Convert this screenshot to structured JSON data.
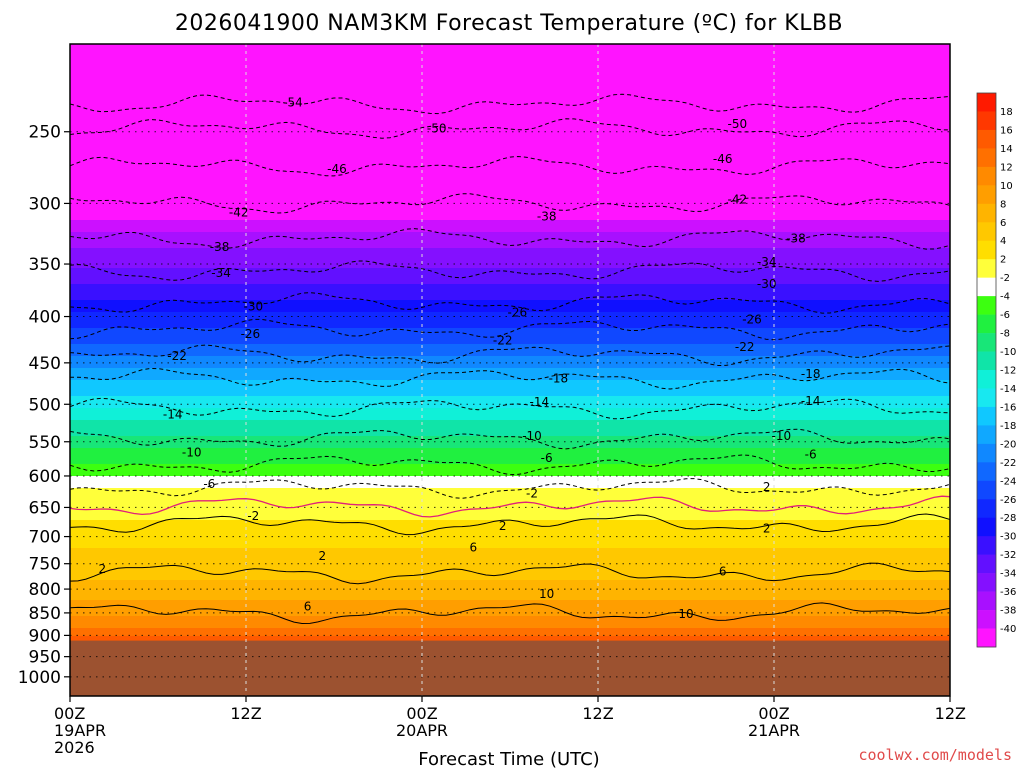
{
  "chart_data": {
    "type": "heatmap",
    "title": "2026041900 NAM3KM Forecast Temperature (ºC) for KLBB",
    "xlabel": "Forecast Time (UTC)",
    "ylabel": "",
    "y_scale": "log",
    "ylim": [
      1050,
      200
    ],
    "y_ticks": [
      250,
      300,
      350,
      400,
      450,
      500,
      550,
      600,
      650,
      700,
      750,
      800,
      850,
      900,
      950,
      1000
    ],
    "x_ticks": [
      {
        "hour": 0,
        "lines": [
          "00Z",
          "19APR",
          "2026"
        ]
      },
      {
        "hour": 12,
        "lines": [
          "12Z"
        ]
      },
      {
        "hour": 24,
        "lines": [
          "00Z",
          "20APR"
        ]
      },
      {
        "hour": 36,
        "lines": [
          "12Z"
        ]
      },
      {
        "hour": 48,
        "lines": [
          "00Z",
          "21APR"
        ]
      },
      {
        "hour": 60,
        "lines": [
          "12Z"
        ]
      }
    ],
    "xlim": [
      0,
      60
    ],
    "grid": true,
    "surface_pressure_hPa": 912,
    "temperature_profile": [
      {
        "p": 200,
        "t": -60
      },
      {
        "p": 230,
        "t": -54
      },
      {
        "p": 250,
        "t": -51
      },
      {
        "p": 270,
        "t": -47
      },
      {
        "p": 300,
        "t": -42
      },
      {
        "p": 330,
        "t": -37
      },
      {
        "p": 360,
        "t": -33
      },
      {
        "p": 390,
        "t": -29
      },
      {
        "p": 420,
        "t": -25
      },
      {
        "p": 450,
        "t": -21
      },
      {
        "p": 480,
        "t": -17
      },
      {
        "p": 510,
        "t": -13
      },
      {
        "p": 550,
        "t": -9
      },
      {
        "p": 590,
        "t": -5
      },
      {
        "p": 630,
        "t": -1
      },
      {
        "p": 670,
        "t": 2
      },
      {
        "p": 720,
        "t": 4
      },
      {
        "p": 780,
        "t": 6
      },
      {
        "p": 840,
        "t": 9
      },
      {
        "p": 880,
        "t": 12
      },
      {
        "p": 912,
        "t": 15
      }
    ],
    "contours": [
      {
        "t": -54,
        "p": 233
      },
      {
        "t": -50,
        "p": 248
      },
      {
        "t": -46,
        "p": 273
      },
      {
        "t": -42,
        "p": 300
      },
      {
        "t": -38,
        "p": 328
      },
      {
        "t": -34,
        "p": 356
      },
      {
        "t": -30,
        "p": 386
      },
      {
        "t": -26,
        "p": 413
      },
      {
        "t": -22,
        "p": 441
      },
      {
        "t": -18,
        "p": 468
      },
      {
        "t": -14,
        "p": 505
      },
      {
        "t": -10,
        "p": 545
      },
      {
        "t": -6,
        "p": 582
      },
      {
        "t": -2,
        "p": 618
      },
      {
        "t": 2,
        "p": 678
      },
      {
        "t": 6,
        "p": 768
      },
      {
        "t": 10,
        "p": 850
      }
    ],
    "contour_labels": [
      {
        "text": "-54",
        "hour": 15.2,
        "p": 232
      },
      {
        "text": "-50",
        "hour": 25,
        "p": 248
      },
      {
        "text": "-50",
        "hour": 45.5,
        "p": 245
      },
      {
        "text": "-46",
        "hour": 18.2,
        "p": 275
      },
      {
        "text": "-46",
        "hour": 44.5,
        "p": 268
      },
      {
        "text": "-42",
        "hour": 11.5,
        "p": 307
      },
      {
        "text": "-42",
        "hour": 45.5,
        "p": 297
      },
      {
        "text": "-38",
        "hour": 10.2,
        "p": 335
      },
      {
        "text": "-38",
        "hour": 32.5,
        "p": 310
      },
      {
        "text": "-38",
        "hour": 49.5,
        "p": 328
      },
      {
        "text": "-34",
        "hour": 10.3,
        "p": 358
      },
      {
        "text": "-34",
        "hour": 47.5,
        "p": 348
      },
      {
        "text": "-30",
        "hour": 12.5,
        "p": 390
      },
      {
        "text": "-30",
        "hour": 47.5,
        "p": 368
      },
      {
        "text": "-26",
        "hour": 12.3,
        "p": 418
      },
      {
        "text": "-26",
        "hour": 30.5,
        "p": 396
      },
      {
        "text": "-26",
        "hour": 46.5,
        "p": 403
      },
      {
        "text": "-22",
        "hour": 7.3,
        "p": 442
      },
      {
        "text": "-22",
        "hour": 29.5,
        "p": 425
      },
      {
        "text": "-22",
        "hour": 46,
        "p": 432
      },
      {
        "text": "-18",
        "hour": 33.3,
        "p": 468
      },
      {
        "text": "-18",
        "hour": 50.5,
        "p": 463
      },
      {
        "text": "-14",
        "hour": 7,
        "p": 513
      },
      {
        "text": "-14",
        "hour": 32,
        "p": 497
      },
      {
        "text": "-14",
        "hour": 50.5,
        "p": 496
      },
      {
        "text": "-10",
        "hour": 8.3,
        "p": 565
      },
      {
        "text": "-10",
        "hour": 31.5,
        "p": 542
      },
      {
        "text": "-10",
        "hour": 48.5,
        "p": 542
      },
      {
        "text": "-6",
        "hour": 9.5,
        "p": 612
      },
      {
        "text": "-6",
        "hour": 32.5,
        "p": 573
      },
      {
        "text": "-6",
        "hour": 50.5,
        "p": 568
      },
      {
        "text": "-2",
        "hour": 12.5,
        "p": 664
      },
      {
        "text": "-2",
        "hour": 31.5,
        "p": 627
      },
      {
        "text": "2",
        "hour": 29.5,
        "p": 681
      },
      {
        "text": "2",
        "hour": 47.5,
        "p": 617
      },
      {
        "text": "2",
        "hour": 47.5,
        "p": 686
      },
      {
        "text": "2",
        "hour": 2.2,
        "p": 760
      },
      {
        "text": "2",
        "hour": 17.2,
        "p": 735
      },
      {
        "text": "6",
        "hour": 27.5,
        "p": 720
      },
      {
        "text": "6",
        "hour": 44.5,
        "p": 765
      },
      {
        "text": "6",
        "hour": 16.2,
        "p": 836
      },
      {
        "text": "10",
        "hour": 32.5,
        "p": 810
      },
      {
        "text": "10",
        "hour": 42,
        "p": 852
      }
    ],
    "colorbar": {
      "labels": [
        "18",
        "16",
        "14",
        "12",
        "10",
        "8",
        "6",
        "4",
        "2",
        "-2",
        "-4",
        "-6",
        "-8",
        "-10",
        "-12",
        "-14",
        "-16",
        "-18",
        "-20",
        "-22",
        "-24",
        "-26",
        "-28",
        "-30",
        "-32",
        "-34",
        "-36",
        "-38",
        "-40"
      ],
      "colors": [
        "#ff1a00",
        "#ff3800",
        "#ff5a00",
        "#ff7000",
        "#ff8a00",
        "#ff9e00",
        "#ffb400",
        "#ffc800",
        "#ffde00",
        "#ffff3a",
        "#ffffff",
        "#3cff10",
        "#20f040",
        "#18e678",
        "#10e4a8",
        "#10f0d8",
        "#18e8f0",
        "#10c8ff",
        "#10a8ff",
        "#1088ff",
        "#1068ff",
        "#1048ff",
        "#1028ff",
        "#1010ff",
        "#3a10ff",
        "#6210ff",
        "#8410ff",
        "#a810ff",
        "#cc10ff",
        "#ff14ff"
      ]
    }
  },
  "watermark": "coolwx.com/models",
  "watermark_color": "#e04a4a",
  "surface_color": "#9c5230"
}
